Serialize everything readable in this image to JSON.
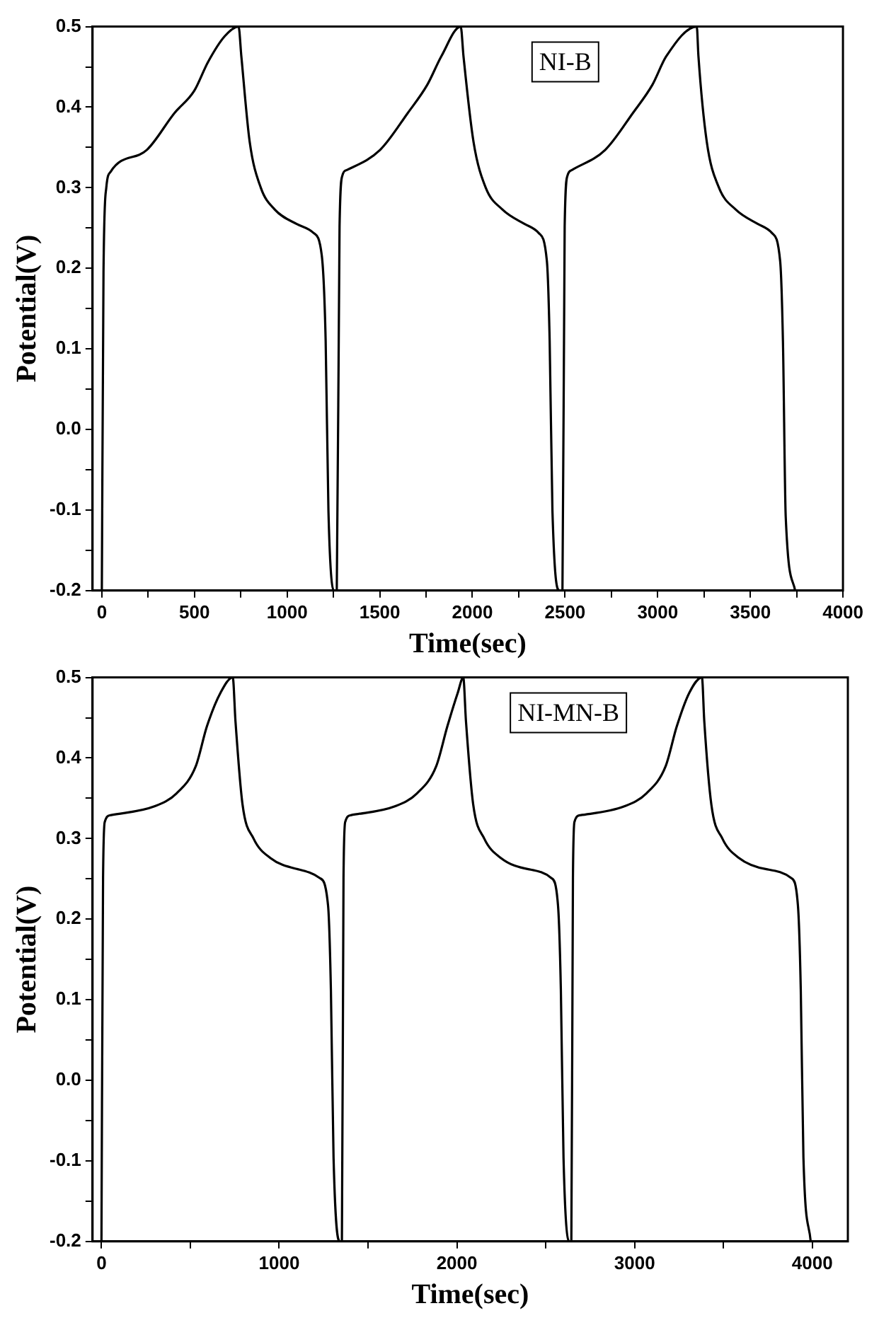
{
  "chart_data": [
    {
      "type": "line",
      "xlabel": "Time(sec)",
      "ylabel": "Potential(V)",
      "annotations": [
        "NI-B"
      ],
      "xlim": [
        -50,
        4000
      ],
      "ylim": [
        -0.2,
        0.5
      ],
      "xticks": [
        0,
        {
          "value": 250,
          "label": null
        },
        500,
        {
          "value": 750,
          "label": null
        },
        1000,
        {
          "value": 1250,
          "label": null
        },
        1500,
        {
          "value": 1750,
          "label": null
        },
        2000,
        {
          "value": 2250,
          "label": null
        },
        2500,
        {
          "value": 2750,
          "label": null
        },
        3000,
        {
          "value": 3250,
          "label": null
        },
        3500,
        {
          "value": 3750,
          "label": null
        },
        4000
      ],
      "yticks": [
        {
          "value": -0.2,
          "label": "-0.2"
        },
        {
          "value": -0.15,
          "label": null
        },
        {
          "value": -0.1,
          "label": "-0.1"
        },
        {
          "value": -0.05,
          "label": null
        },
        {
          "value": 0,
          "label": "0.0"
        },
        {
          "value": 0.05,
          "label": null
        },
        {
          "value": 0.1,
          "label": "0.1"
        },
        {
          "value": 0.15,
          "label": null
        },
        {
          "value": 0.2,
          "label": "0.2"
        },
        {
          "value": 0.25,
          "label": null
        },
        {
          "value": 0.3,
          "label": "0.3"
        },
        {
          "value": 0.35,
          "label": null
        },
        {
          "value": 0.4,
          "label": "0.4"
        },
        {
          "value": 0.45,
          "label": null
        },
        {
          "value": 0.5,
          "label": "0.5"
        }
      ],
      "grid": false,
      "legend": false,
      "marker": "none",
      "line_style": "solid",
      "series": [
        {
          "color": "#000000",
          "x": [
            0,
            9,
            24,
            48,
            243,
            393,
            498,
            573,
            663,
            738,
            753,
            798,
            858,
            933,
            1052,
            1142,
            1187,
            1208,
            1223,
            1256,
            1268,
            1283,
            1298,
            1322,
            1502,
            1652,
            1757,
            1832,
            1937,
            1952,
            2006,
            2072,
            2162,
            2282,
            2357,
            2402,
            2417,
            2432,
            2471,
            2486,
            2498,
            2513,
            2537,
            2717,
            2867,
            2972,
            3046,
            3211,
            3220,
            3265,
            3331,
            3421,
            3541,
            3616,
            3661,
            3676,
            3691,
            3742
          ],
          "values": [
            -0.2,
            0.195,
            0.3,
            0.32,
            0.347,
            0.393,
            0.42,
            0.456,
            0.488,
            0.5,
            0.463,
            0.357,
            0.3,
            0.273,
            0.255,
            0.244,
            0.216,
            0.11,
            -0.101,
            -0.2,
            -0.2,
            0.252,
            0.315,
            0.322,
            0.347,
            0.393,
            0.428,
            0.463,
            0.5,
            0.463,
            0.357,
            0.3,
            0.273,
            0.255,
            0.244,
            0.209,
            0.11,
            -0.101,
            -0.2,
            -0.2,
            0.252,
            0.315,
            0.322,
            0.347,
            0.393,
            0.428,
            0.463,
            0.5,
            0.463,
            0.357,
            0.3,
            0.273,
            0.255,
            0.244,
            0.209,
            0.11,
            -0.108,
            -0.2
          ]
        }
      ]
    },
    {
      "type": "line",
      "xlabel": "Time(sec)",
      "ylabel": "Potential(V)",
      "annotations": [
        "NI-MN-B"
      ],
      "xlim": [
        -50,
        4200
      ],
      "ylim": [
        -0.2,
        0.5
      ],
      "xticks": [
        0,
        {
          "value": 500,
          "label": null
        },
        1000,
        {
          "value": 1500,
          "label": null
        },
        2000,
        {
          "value": 2500,
          "label": null
        },
        3000,
        {
          "value": 3500,
          "label": null
        },
        4000
      ],
      "yticks": [
        {
          "value": -0.2,
          "label": "-0.2"
        },
        {
          "value": -0.15,
          "label": null
        },
        {
          "value": -0.1,
          "label": "-0.1"
        },
        {
          "value": -0.05,
          "label": null
        },
        {
          "value": 0,
          "label": "0.0"
        },
        {
          "value": 0.05,
          "label": null
        },
        {
          "value": 0.1,
          "label": "0.1"
        },
        {
          "value": 0.15,
          "label": null
        },
        {
          "value": 0.2,
          "label": "0.2"
        },
        {
          "value": 0.25,
          "label": null
        },
        {
          "value": 0.3,
          "label": "0.3"
        },
        {
          "value": 0.35,
          "label": null
        },
        {
          "value": 0.4,
          "label": "0.4"
        },
        {
          "value": 0.45,
          "label": null
        },
        {
          "value": 0.5,
          "label": "0.5"
        }
      ],
      "grid": false,
      "legend": false,
      "marker": "none",
      "line_style": "solid",
      "series": [
        {
          "color": "#000000",
          "x": [
            0,
            9,
            19,
            50,
            298,
            422,
            531,
            593,
            670,
            739,
            754,
            794,
            856,
            950,
            1105,
            1229,
            1275,
            1291,
            1306,
            1344,
            1353,
            1362,
            1372,
            1403,
            1651,
            1775,
            1884,
            1946,
            2005,
            2036,
            2051,
            2092,
            2154,
            2247,
            2402,
            2532,
            2569,
            2585,
            2600,
            2635,
            2644,
            2653,
            2662,
            2694,
            2942,
            3066,
            3175,
            3237,
            3308,
            3379,
            3392,
            3432,
            3494,
            3587,
            3742,
            3882,
            3919,
            3935,
            3950,
            3991
          ],
          "values": [
            -0.2,
            0.251,
            0.321,
            0.329,
            0.34,
            0.356,
            0.39,
            0.439,
            0.481,
            0.5,
            0.446,
            0.342,
            0.3,
            0.276,
            0.262,
            0.251,
            0.217,
            0.113,
            -0.096,
            -0.2,
            -0.2,
            0.251,
            0.321,
            0.329,
            0.34,
            0.356,
            0.39,
            0.439,
            0.481,
            0.5,
            0.446,
            0.342,
            0.3,
            0.276,
            0.262,
            0.251,
            0.217,
            0.113,
            -0.096,
            -0.2,
            -0.2,
            0.251,
            0.321,
            0.329,
            0.34,
            0.356,
            0.39,
            0.439,
            0.481,
            0.5,
            0.446,
            0.342,
            0.3,
            0.276,
            0.262,
            0.251,
            0.217,
            0.113,
            -0.096,
            -0.2
          ]
        }
      ]
    }
  ]
}
